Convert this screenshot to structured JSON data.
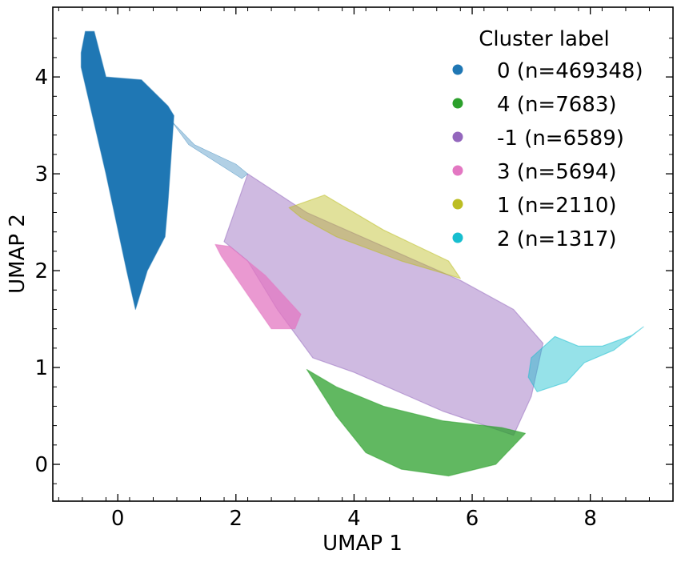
{
  "chart_data": {
    "type": "scatter",
    "title": "",
    "xlabel": "UMAP 1",
    "ylabel": "UMAP 2",
    "xlim": [
      -1.1,
      9.4
    ],
    "ylim": [
      -0.38,
      4.72
    ],
    "xticks": [
      0,
      2,
      4,
      6,
      8
    ],
    "yticks": [
      0,
      1,
      2,
      3,
      4
    ],
    "legend": {
      "title": "Cluster label",
      "placement": "top-right"
    },
    "series": [
      {
        "name": "0 (n=469348)",
        "label": "0",
        "count": 469348,
        "color": "#1f77b4"
      },
      {
        "name": "4 (n=7683)",
        "label": "4",
        "count": 7683,
        "color": "#2ca02c"
      },
      {
        "name": "-1 (n=6589)",
        "label": "-1",
        "count": 6589,
        "color": "#9467bd"
      },
      {
        "name": "3 (n=5694)",
        "label": "3",
        "count": 5694,
        "color": "#e377c2"
      },
      {
        "name": "1 (n=2110)",
        "label": "1",
        "count": 2110,
        "color": "#bcbd22"
      },
      {
        "name": "2 (n=1317)",
        "label": "2",
        "count": 1317,
        "color": "#17becf"
      }
    ],
    "regions": [
      {
        "label": "-1",
        "polygon": [
          [
            2.2,
            3.0
          ],
          [
            3.2,
            2.6
          ],
          [
            4.5,
            2.25
          ],
          [
            5.8,
            1.9
          ],
          [
            6.7,
            1.6
          ],
          [
            7.2,
            1.25
          ],
          [
            7.0,
            0.7
          ],
          [
            6.7,
            0.3
          ],
          [
            5.5,
            0.55
          ],
          [
            4.0,
            0.95
          ],
          [
            3.3,
            1.1
          ],
          [
            2.7,
            1.6
          ],
          [
            2.2,
            2.1
          ],
          [
            1.8,
            2.3
          ]
        ]
      },
      {
        "label": "0",
        "polygon": [
          [
            -0.62,
            4.25
          ],
          [
            -0.55,
            4.47
          ],
          [
            -0.4,
            4.47
          ],
          [
            -0.2,
            4.0
          ],
          [
            0.4,
            3.97
          ],
          [
            0.85,
            3.7
          ],
          [
            0.95,
            3.6
          ],
          [
            0.85,
            2.7
          ],
          [
            0.8,
            2.35
          ],
          [
            0.5,
            2.0
          ],
          [
            0.3,
            1.6
          ],
          [
            0.15,
            2.0
          ],
          [
            -0.2,
            3.0
          ],
          [
            -0.62,
            4.1
          ]
        ]
      },
      {
        "label": "0-bridge",
        "polygon": [
          [
            0.9,
            3.55
          ],
          [
            1.3,
            3.3
          ],
          [
            2.0,
            3.1
          ],
          [
            2.2,
            3.0
          ],
          [
            2.1,
            2.95
          ],
          [
            1.2,
            3.3
          ]
        ]
      },
      {
        "label": "4",
        "polygon": [
          [
            3.2,
            0.98
          ],
          [
            3.7,
            0.8
          ],
          [
            4.5,
            0.6
          ],
          [
            5.5,
            0.45
          ],
          [
            6.5,
            0.38
          ],
          [
            6.9,
            0.32
          ],
          [
            6.4,
            0.0
          ],
          [
            5.6,
            -0.12
          ],
          [
            4.8,
            -0.05
          ],
          [
            4.2,
            0.12
          ],
          [
            3.7,
            0.5
          ]
        ]
      },
      {
        "label": "3",
        "polygon": [
          [
            1.65,
            2.27
          ],
          [
            1.9,
            2.25
          ],
          [
            2.5,
            1.95
          ],
          [
            3.1,
            1.55
          ],
          [
            3.0,
            1.4
          ],
          [
            2.6,
            1.4
          ],
          [
            2.2,
            1.75
          ],
          [
            1.75,
            2.15
          ]
        ]
      },
      {
        "label": "1",
        "polygon": [
          [
            2.9,
            2.65
          ],
          [
            3.5,
            2.78
          ],
          [
            4.5,
            2.42
          ],
          [
            5.6,
            2.1
          ],
          [
            5.8,
            1.92
          ],
          [
            4.8,
            2.1
          ],
          [
            3.7,
            2.35
          ],
          [
            3.1,
            2.55
          ]
        ]
      },
      {
        "label": "2",
        "polygon": [
          [
            7.0,
            1.1
          ],
          [
            7.4,
            1.32
          ],
          [
            7.8,
            1.22
          ],
          [
            8.2,
            1.22
          ],
          [
            8.7,
            1.33
          ],
          [
            8.9,
            1.42
          ],
          [
            8.4,
            1.18
          ],
          [
            7.9,
            1.05
          ],
          [
            7.6,
            0.85
          ],
          [
            7.1,
            0.75
          ],
          [
            6.95,
            0.9
          ]
        ]
      }
    ]
  }
}
